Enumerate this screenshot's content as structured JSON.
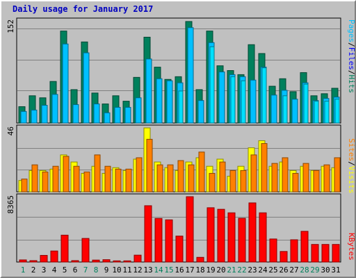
{
  "title": "Daily usage for January 2017",
  "colors": {
    "hits": "#00805c",
    "files": "#00c0ff",
    "pages": "#00e0ff",
    "visits": "#ffff00",
    "sites": "#ff8000",
    "kbytes": "#ff0000",
    "weekend_label": "#00805c",
    "weekday_label": "#000000",
    "background": "#c0c0c0",
    "grid": "#808080"
  },
  "legends": {
    "top": [
      {
        "text": "Pages",
        "color": "#00c0ff"
      },
      {
        "text": "/",
        "color": "#000000"
      },
      {
        "text": "Files",
        "color": "#0000ff"
      },
      {
        "text": "/",
        "color": "#000000"
      },
      {
        "text": "Hits",
        "color": "#00805c"
      }
    ],
    "mid": [
      {
        "text": "Sites",
        "color": "#ff8000"
      },
      {
        "text": "/",
        "color": "#000000"
      },
      {
        "text": "Visits",
        "color": "#ffff00"
      }
    ],
    "bot": [
      {
        "text": "KBytes",
        "color": "#ff0000"
      }
    ]
  },
  "chart_data": [
    {
      "type": "bar",
      "panel": "hits-files-pages",
      "ymax_label": "152",
      "ylim": [
        0,
        152
      ],
      "categories": [
        "1",
        "2",
        "3",
        "4",
        "5",
        "6",
        "7",
        "8",
        "9",
        "10",
        "11",
        "12",
        "13",
        "14",
        "15",
        "16",
        "17",
        "18",
        "19",
        "20",
        "21",
        "22",
        "23",
        "24",
        "25",
        "26",
        "27",
        "28",
        "29",
        "30",
        "31"
      ],
      "weekend_days": [
        "1",
        "7",
        "8",
        "14",
        "15",
        "21",
        "22",
        "28",
        "29"
      ],
      "series": [
        {
          "name": "Hits",
          "values": [
            24,
            40,
            37,
            61,
            135,
            49,
            119,
            44,
            28,
            40,
            32,
            67,
            126,
            82,
            64,
            68,
            149,
            49,
            135,
            84,
            77,
            71,
            115,
            102,
            54,
            65,
            46,
            74,
            40,
            43,
            51
          ]
        },
        {
          "name": "Files",
          "values": [
            17,
            19,
            26,
            42,
            116,
            27,
            103,
            28,
            15,
            23,
            23,
            37,
            94,
            65,
            62,
            59,
            140,
            33,
            118,
            75,
            71,
            68,
            63,
            82,
            41,
            48,
            35,
            59,
            33,
            36,
            38
          ]
        },
        {
          "name": "Pages",
          "values": [
            17,
            19,
            26,
            42,
            116,
            27,
            103,
            28,
            15,
            23,
            23,
            37,
            94,
            65,
            62,
            47,
            140,
            33,
            112,
            75,
            68,
            62,
            91,
            81,
            41,
            40,
            35,
            57,
            32,
            32,
            35
          ]
        }
      ]
    },
    {
      "type": "bar",
      "panel": "visits-sites",
      "ymax_label": "46",
      "ylim": [
        0,
        46
      ],
      "categories": [
        "1",
        "2",
        "3",
        "4",
        "5",
        "6",
        "7",
        "8",
        "9",
        "10",
        "11",
        "12",
        "13",
        "14",
        "15",
        "16",
        "17",
        "18",
        "19",
        "20",
        "21",
        "22",
        "23",
        "24",
        "25",
        "26",
        "27",
        "28",
        "29",
        "30",
        "31"
      ],
      "series": [
        {
          "name": "Visits",
          "values": [
            8,
            15,
            15,
            16,
            26,
            21,
            13,
            18,
            13,
            17,
            15,
            23,
            45,
            21,
            17,
            15,
            21,
            24,
            18,
            23,
            11,
            18,
            31,
            36,
            18,
            21,
            15,
            18,
            15,
            18,
            17
          ]
        },
        {
          "name": "Sites",
          "values": [
            9,
            19,
            14,
            18,
            25,
            18,
            14,
            26,
            18,
            16,
            16,
            24,
            37,
            19,
            19,
            22,
            19,
            28,
            13,
            21,
            15,
            15,
            26,
            34,
            20,
            24,
            13,
            20,
            15,
            19,
            24
          ]
        }
      ]
    },
    {
      "type": "bar",
      "panel": "kbytes",
      "ymax_label": "8365",
      "ylim": [
        0,
        8365
      ],
      "categories": [
        "1",
        "2",
        "3",
        "4",
        "5",
        "6",
        "7",
        "8",
        "9",
        "10",
        "11",
        "12",
        "13",
        "14",
        "15",
        "16",
        "17",
        "18",
        "19",
        "20",
        "21",
        "22",
        "23",
        "24",
        "25",
        "26",
        "27",
        "28",
        "29",
        "30",
        "31"
      ],
      "series": [
        {
          "name": "KBytes",
          "values": [
            270,
            180,
            850,
            1410,
            3440,
            180,
            3020,
            250,
            300,
            150,
            150,
            880,
            7210,
            5580,
            5400,
            3320,
            8365,
            600,
            6950,
            6750,
            6300,
            5600,
            7570,
            6300,
            2950,
            1350,
            2850,
            3930,
            2250,
            2250,
            2250
          ]
        }
      ]
    }
  ]
}
